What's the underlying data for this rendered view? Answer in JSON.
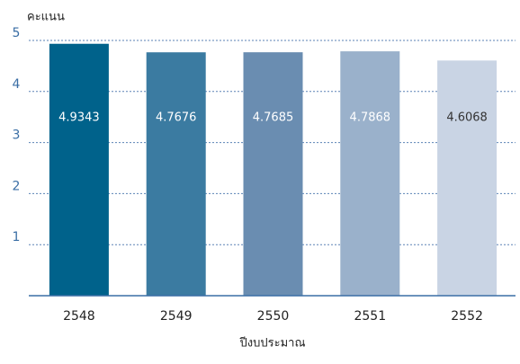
{
  "chart_data": {
    "type": "bar",
    "ylabel": "คะแนน",
    "xlabel": "ปีงบประมาณ",
    "categories": [
      "2548",
      "2549",
      "2550",
      "2551",
      "2552"
    ],
    "values": [
      4.9343,
      4.7676,
      4.7685,
      4.7868,
      4.6068
    ],
    "colors": [
      "#00628b",
      "#3b7ba1",
      "#6a8db1",
      "#9ab1cb",
      "#c9d4e4"
    ],
    "label_colors": [
      "#ffffff",
      "#ffffff",
      "#ffffff",
      "#ffffff",
      "#333333"
    ],
    "ylim": [
      0,
      5
    ],
    "yticks": [
      1,
      2,
      3,
      4,
      5
    ],
    "grid": true
  }
}
